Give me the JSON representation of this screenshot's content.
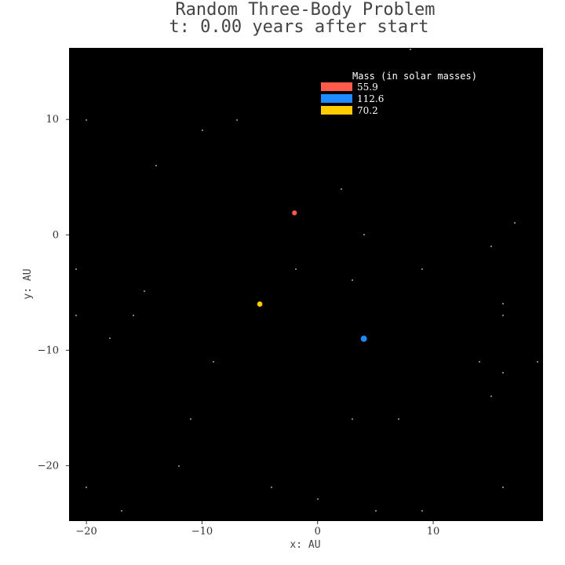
{
  "chart_data": {
    "type": "scatter",
    "title": "Random Three-Body Problem",
    "subtitle": "t: 0.00 years after start",
    "xlabel": "x: AU",
    "ylabel": "y: AU",
    "xlim": [
      -21.5,
      19.5
    ],
    "ylim": [
      -24.8,
      16.2
    ],
    "x_ticks": [
      -20,
      -10,
      0,
      10
    ],
    "x_tick_labels": [
      "−20",
      "−10",
      "0",
      "10"
    ],
    "y_ticks": [
      10,
      0,
      -10,
      -20
    ],
    "y_tick_labels": [
      "10",
      "0",
      "−10",
      "−20"
    ],
    "background": "#000000",
    "grid": false,
    "legend": {
      "title": "Mass (in solar masses)",
      "placement": "top-center",
      "entries": [
        {
          "label": "55.9",
          "color": "#ff5a4a"
        },
        {
          "label": "112.6",
          "color": "#1e8cff"
        },
        {
          "label": "70.2",
          "color": "#ffcc00"
        }
      ]
    },
    "series": [
      {
        "name": "55.9",
        "color": "#ff5a4a",
        "mass": 55.9,
        "x": [
          -2.0
        ],
        "y": [
          1.9
        ]
      },
      {
        "name": "112.6",
        "color": "#1e8cff",
        "mass": 112.6,
        "x": [
          4.0
        ],
        "y": [
          -9.0
        ]
      },
      {
        "name": "70.2",
        "color": "#ffcc00",
        "mass": 70.2,
        "x": [
          -5.0
        ],
        "y": [
          -6.0
        ]
      }
    ]
  }
}
